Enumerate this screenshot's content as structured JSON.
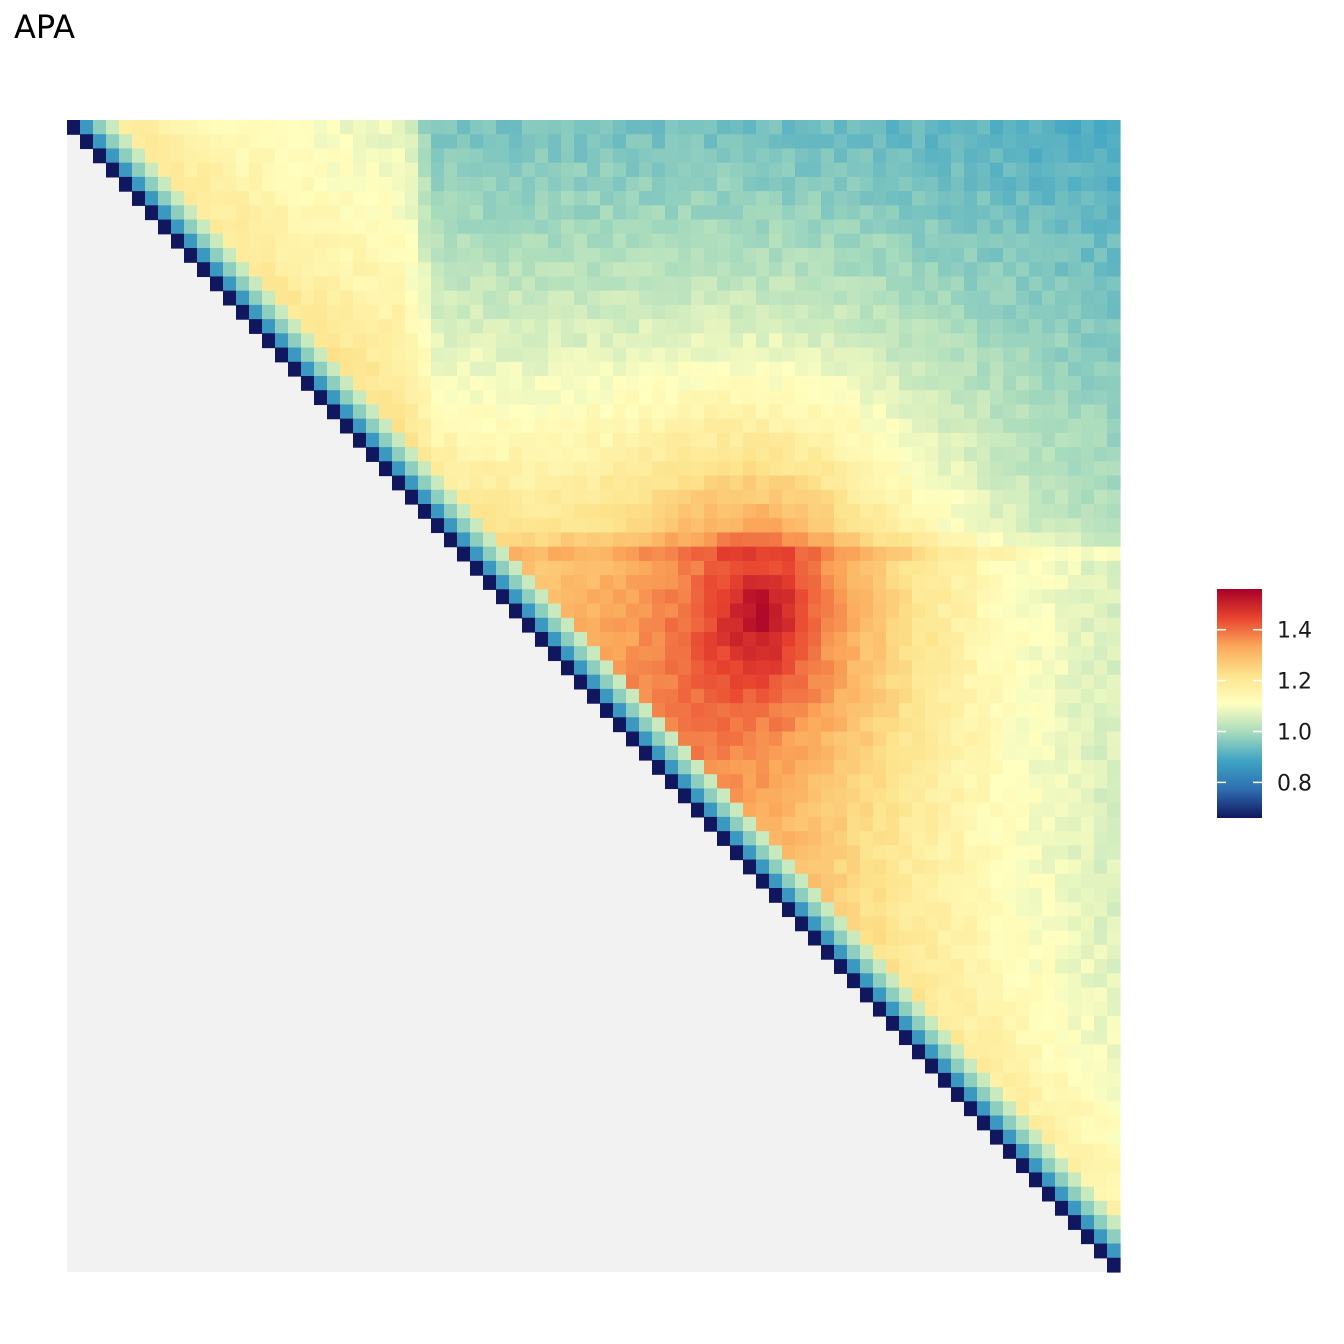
{
  "chart_data": {
    "type": "heatmap",
    "title": "APA",
    "xlabel": "",
    "ylabel": "",
    "grid": false,
    "legend_position": "right",
    "lower_triangle_color": "#f2f2f2",
    "colorbar": {
      "min": 0.66,
      "max": 1.56,
      "ticks": [
        0.8,
        1.0,
        1.2,
        1.4
      ],
      "tick_labels": [
        "0.8",
        "1.0",
        "1.2",
        "1.4"
      ],
      "colors": [
        "#10175e",
        "#2f6eb0",
        "#3fa4c4",
        "#a8dbbd",
        "#ffffc0",
        "#fde38c",
        "#fba85a",
        "#e8432f",
        "#a80027"
      ]
    },
    "matrix_description": {
      "n_bins": 81,
      "diagonal_value": 0.66,
      "peak": {
        "row": 34,
        "col": 53,
        "value": 1.56
      },
      "background_far_value": 0.95,
      "stripe_column": 26,
      "stripe_row": 29
    }
  }
}
